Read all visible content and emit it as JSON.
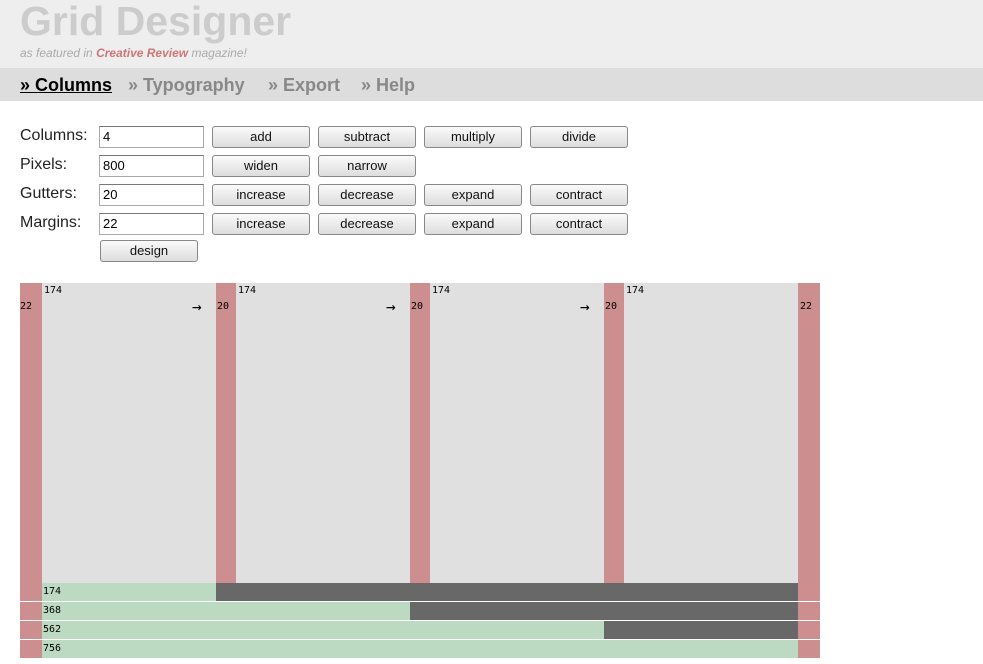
{
  "header": {
    "title": "Grid Designer",
    "subtitle_prefix": "as featured in",
    "subtitle_link": "Creative Review",
    "subtitle_suffix": "magazine!"
  },
  "nav": [
    "» Columns",
    "» Typography",
    "» Export",
    "» Help"
  ],
  "form": {
    "rows": [
      {
        "label": "Columns:",
        "value": "4",
        "buttons": [
          "add",
          "subtract",
          "multiply",
          "divide"
        ]
      },
      {
        "label": "Pixels:",
        "value": "800",
        "buttons": [
          "widen",
          "narrow"
        ]
      },
      {
        "label": "Gutters:",
        "value": "20",
        "buttons": [
          "increase",
          "decrease",
          "expand",
          "contract"
        ]
      },
      {
        "label": "Margins:",
        "value": "22",
        "buttons": [
          "increase",
          "decrease",
          "expand",
          "contract"
        ]
      }
    ],
    "design_button": "design"
  },
  "grid": {
    "margin": 22,
    "gutter": 20,
    "columns": [
      174,
      174,
      174,
      174
    ],
    "cumulative": [
      174,
      368,
      562,
      756
    ],
    "arrow": "→"
  }
}
